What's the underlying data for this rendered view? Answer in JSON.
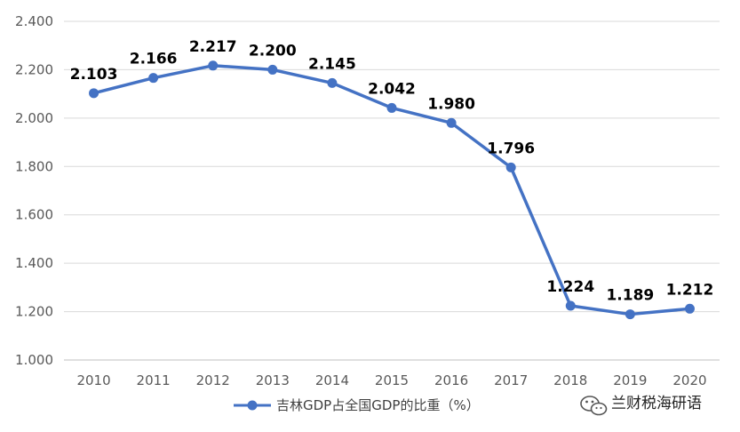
{
  "colors": {
    "series": "#4472C4",
    "grid": "#D9D9D9",
    "axis": "#BFBFBF",
    "text": "#595959"
  },
  "chart_data": {
    "type": "line",
    "title": "",
    "xlabel": "",
    "ylabel": "",
    "x": [
      "2010",
      "2011",
      "2012",
      "2013",
      "2014",
      "2015",
      "2016",
      "2017",
      "2018",
      "2019",
      "2020"
    ],
    "series": [
      {
        "name": "吉林GDP占全国GDP的比重（%）",
        "values": [
          2.103,
          2.166,
          2.217,
          2.2,
          2.145,
          2.042,
          1.98,
          1.796,
          1.224,
          1.189,
          1.212
        ],
        "labels": [
          "2.103",
          "2.166",
          "2.217",
          "2.200",
          "2.145",
          "2.042",
          "1.980",
          "1.796",
          "1.224",
          "1.189",
          "1.212"
        ],
        "marker": "circle"
      }
    ],
    "ylim": [
      1.0,
      2.4
    ],
    "yticks": [
      "1.000",
      "1.200",
      "1.400",
      "1.600",
      "1.800",
      "2.000",
      "2.200",
      "2.400"
    ],
    "grid": true,
    "legend": "bottom"
  },
  "watermark": {
    "icon": "wechat-icon",
    "text": "兰财税海研语"
  }
}
